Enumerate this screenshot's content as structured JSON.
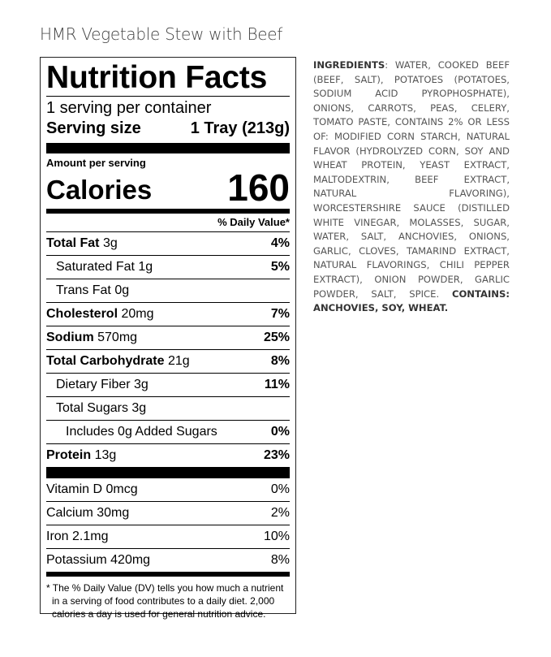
{
  "product_title": "HMR Vegetable Stew with Beef",
  "label": {
    "title": "Nutrition Facts",
    "servings_per_container": "1 serving per container",
    "serving_size_label": "Serving size",
    "serving_size_value": "1 Tray (213g)",
    "amount_per_serving": "Amount per serving",
    "calories_label": "Calories",
    "calories_value": "160",
    "daily_value_header": "% Daily Value*",
    "nutrients": [
      {
        "name": "Total Fat",
        "amount": "3g",
        "dv": "4%"
      },
      {
        "name": "Saturated Fat",
        "amount": "1g",
        "dv": "5%"
      },
      {
        "name": "Trans Fat",
        "amount": "0g",
        "dv": ""
      },
      {
        "name": "Cholesterol",
        "amount": "20mg",
        "dv": "7%"
      },
      {
        "name": "Sodium",
        "amount": "570mg",
        "dv": "25%"
      },
      {
        "name": "Total Carbohydrate",
        "amount": "21g",
        "dv": "8%"
      },
      {
        "name": "Dietary Fiber",
        "amount": "3g",
        "dv": "11%"
      },
      {
        "name": "Total Sugars",
        "amount": "3g",
        "dv": ""
      },
      {
        "name": "Includes 0g Added Sugars",
        "amount": "",
        "dv": "0%"
      },
      {
        "name": "Protein",
        "amount": "13g",
        "dv": "23%"
      }
    ],
    "vitamins": [
      {
        "name": "Vitamin D",
        "amount": "0mcg",
        "dv": "0%"
      },
      {
        "name": "Calcium",
        "amount": "30mg",
        "dv": "2%"
      },
      {
        "name": "Iron",
        "amount": "2.1mg",
        "dv": "10%"
      },
      {
        "name": "Potassium",
        "amount": "420mg",
        "dv": "8%"
      }
    ],
    "footnote": "* The % Daily Value (DV) tells you how much a nutrient in a serving of food contributes to a daily diet. 2,000 calories a day is used for general nutrition advice."
  },
  "ingredients": {
    "label": "INGREDIENTS",
    "text": ": WATER, COOKED BEEF (BEEF, SALT), POTATOES (POTATOES, SODIUM ACID PYROPHOSPHATE), ONIONS, CARROTS, PEAS, CELERY, TOMATO PASTE, CONTAINS 2% OR LESS OF: MODIFIED CORN STARCH, NATURAL FLAVOR (HYDROLYZED CORN, SOY AND WHEAT PROTEIN, YEAST EXTRACT, MALTODEXTRIN, BEEF EXTRACT, NATURAL FLAVORING), WORCESTERSHIRE SAUCE (DISTILLED WHITE VINEGAR, MOLASSES, SUGAR, WATER, SALT, ANCHOVIES, ONIONS, GARLIC, CLOVES, TAMARIND EXTRACT, NATURAL FLAVORINGS, CHILI PEPPER EXTRACT), ONION POWDER, GARLIC POWDER, SALT, SPICE. ",
    "contains_label": "CONTAINS",
    "contains_text": ": ANCHOVIES, SOY, WHEAT."
  }
}
